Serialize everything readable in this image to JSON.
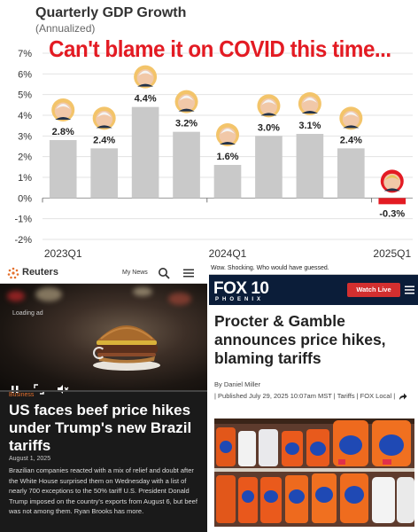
{
  "chart_data": {
    "type": "bar",
    "title": "Quarterly GDP Growth",
    "subtitle": "(Annualized)",
    "caption": "Can't blame it on COVID this time...",
    "ylim": [
      -2,
      7
    ],
    "yticks": [
      "-2%",
      "-1%",
      "0%",
      "1%",
      "2%",
      "3%",
      "4%",
      "5%",
      "6%",
      "7%"
    ],
    "ytick_values": [
      -2,
      -1,
      0,
      1,
      2,
      3,
      4,
      5,
      6,
      7
    ],
    "x_tick_labels": [
      "2023Q1",
      "2024Q1",
      "2025Q1"
    ],
    "values": [
      2.8,
      2.4,
      4.4,
      3.2,
      1.6,
      3.0,
      3.1,
      2.4,
      -0.3
    ],
    "value_labels": [
      "2.8%",
      "2.4%",
      "4.4%",
      "3.2%",
      "1.6%",
      "3.0%",
      "3.1%",
      "2.4%",
      "-0.3%"
    ],
    "bar_colors": [
      "#c9c9c9",
      "#c9c9c9",
      "#c9c9c9",
      "#c9c9c9",
      "#c9c9c9",
      "#c9c9c9",
      "#c9c9c9",
      "#c9c9c9",
      "#e31b23"
    ],
    "face_icons": [
      "biden-face-icon",
      "biden-face-icon",
      "biden-face-icon",
      "biden-face-icon",
      "biden-face-icon",
      "biden-face-icon",
      "biden-face-icon",
      "biden-face-icon",
      "trump-face-icon"
    ],
    "grid": true,
    "accent_color": "#e31b23"
  },
  "reuters": {
    "logo": "Reuters",
    "my_news": "My News",
    "loading": "Loading ad",
    "category": "Business",
    "headline": "US faces beef price hikes under Trump's new Brazil tariffs",
    "date": "August 1, 2025",
    "body": "Brazilian companies reacted with a mix of relief and doubt after the White House surprised them on Wednesday with a list of nearly 700 exceptions to the 50% tariff U.S. President Donald Trump imposed on the country's exports from August 6, but beef was not among them. Ryan Brooks has more.",
    "accent_color": "#e4702d"
  },
  "fox": {
    "comment": "Wow. Shocking. Who would have guessed.",
    "logo": "FOX 10",
    "logo_sub": "PHOENIX",
    "watch_live": "Watch Live",
    "headline": "Procter & Gamble announces price hikes, blaming tariffs",
    "byline": "By Daniel Miller",
    "published": "| Published July 29, 2025 10:07am MST | Tariffs | FOX Local |",
    "brand_color": "#0b1d39",
    "accent_color": "#d32f2f"
  }
}
